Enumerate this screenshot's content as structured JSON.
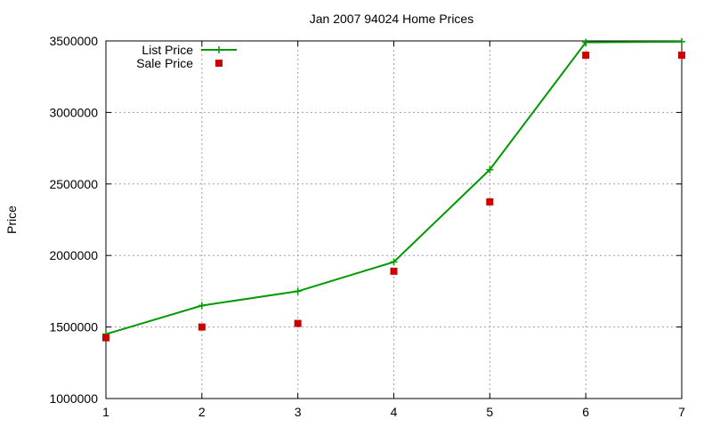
{
  "chart_data": {
    "type": "line",
    "title": "Jan 2007 94024 Home Prices",
    "xlabel": "",
    "ylabel": "Price",
    "x": [
      1,
      2,
      3,
      4,
      5,
      6,
      7
    ],
    "xlim": [
      1,
      7
    ],
    "ylim": [
      1000000,
      3500000
    ],
    "xticks": [
      "1",
      "2",
      "3",
      "4",
      "5",
      "6",
      "7"
    ],
    "yticks": [
      "1000000",
      "1500000",
      "2000000",
      "2500000",
      "3000000",
      "3500000"
    ],
    "grid": true,
    "legend_position": "top-left",
    "series": [
      {
        "name": "List Price",
        "style": "line-with-plus",
        "color": "#009900",
        "values": [
          1450000,
          1650000,
          1750000,
          1955000,
          2600000,
          3490000,
          3495000
        ]
      },
      {
        "name": "Sale Price",
        "style": "square-points",
        "color": "#cc0000",
        "values": [
          1425000,
          1500000,
          1525000,
          1890000,
          2375000,
          3400000,
          3400000
        ]
      }
    ]
  }
}
